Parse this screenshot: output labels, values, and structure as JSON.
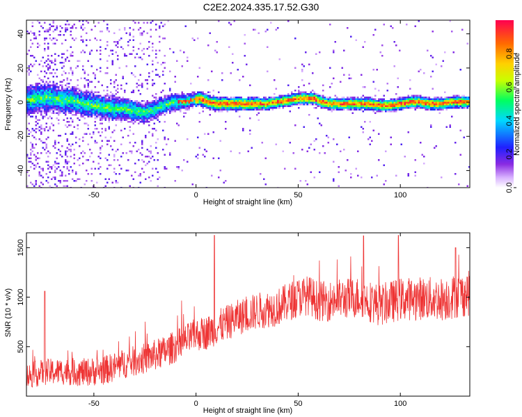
{
  "figure_title": "C2E2.2024.335.17.52.G30",
  "colorbar": {
    "label": "Normalized spectral amplitude",
    "ticks": [
      "0.0",
      "0.2",
      "0.4",
      "0.6",
      "0.8"
    ],
    "tick_values": [
      0.0,
      0.2,
      0.4,
      0.6,
      0.8
    ],
    "range": [
      0.0,
      1.0
    ],
    "colormap": "rainbow (white-violet-blue-cyan-green-yellow-orange-red)"
  },
  "chart_data": [
    {
      "type": "heatmap",
      "xlabel": "Height of straight line (km)",
      "ylabel": "Frequency (Hz)",
      "xlim": [
        -83,
        134
      ],
      "ylim": [
        -50,
        48
      ],
      "xticks": [
        "-50",
        "0",
        "50",
        "100"
      ],
      "xtick_values": [
        -50,
        0,
        50,
        100
      ],
      "yticks": [
        "40",
        "20",
        "0",
        "-20",
        "-40"
      ],
      "ytick_values": [
        40,
        20,
        0,
        -20,
        -40
      ],
      "ridge_center_hz": {
        "x": [
          -83,
          -78,
          -72,
          -66,
          -60,
          -55,
          -50,
          -45,
          -40,
          -35,
          -30,
          -26,
          -22,
          -18,
          -14,
          -10,
          -6,
          -2,
          2,
          6,
          10,
          15,
          20,
          25,
          30,
          35,
          40,
          45,
          50,
          55,
          58,
          62,
          66,
          70,
          75,
          80,
          85,
          90,
          95,
          100,
          105,
          110,
          115,
          120,
          125,
          130,
          134
        ],
        "y": [
          1,
          2,
          3,
          1,
          1,
          -1,
          -2,
          -3,
          -4,
          -4,
          -5,
          -6,
          -5,
          -3,
          -1,
          0,
          0,
          1,
          2,
          0,
          -1,
          -1,
          -1,
          -1,
          -1,
          -1,
          0,
          1,
          2,
          2,
          2,
          0,
          -1,
          -1,
          -1,
          -1,
          -1,
          -2,
          -2,
          -1,
          0,
          0,
          -1,
          -1,
          0,
          0,
          0
        ]
      },
      "ridge_halfwidth_hz": {
        "x": [
          -83,
          -40,
          -20,
          0,
          40,
          134
        ],
        "y": [
          6,
          5,
          4,
          3,
          2.5,
          2.5
        ]
      },
      "grid": false
    },
    {
      "type": "line",
      "xlabel": "Height of straight line (km)",
      "ylabel": "SNR (10 * v/v)",
      "xlim": [
        -83,
        134
      ],
      "ylim": [
        0,
        1650
      ],
      "xticks": [
        "-50",
        "0",
        "50",
        "100"
      ],
      "xtick_values": [
        -50,
        0,
        50,
        100
      ],
      "yticks": [
        "1500",
        "1000",
        "500"
      ],
      "ytick_values": [
        1500,
        1000,
        500
      ],
      "series": [
        {
          "color": "#ee3333",
          "trend": {
            "x": [
              -83,
              -75,
              -65,
              -55,
              -45,
              -35,
              -25,
              -15,
              -5,
              0,
              5,
              10,
              20,
              30,
              40,
              50,
              55,
              60,
              65,
              70,
              80,
              90,
              100,
              110,
              120,
              134
            ],
            "y": [
              200,
              240,
              250,
              240,
              260,
              330,
              380,
              450,
              560,
              620,
              640,
              690,
              790,
              860,
              900,
              1000,
              1020,
              960,
              960,
              980,
              1000,
              920,
              980,
              990,
              980,
              1040
            ]
          },
          "noise_spread": {
            "x": [
              -83,
              -40,
              0,
              50,
              134
            ],
            "y": [
              130,
              150,
              170,
              200,
              230
            ]
          },
          "spikes": [
            {
              "x": -74,
              "y": 1060
            },
            {
              "x": 9,
              "y": 1625
            },
            {
              "x": 82,
              "y": 1620
            },
            {
              "x": 99,
              "y": 1625
            },
            {
              "x": 127,
              "y": 1500
            }
          ]
        }
      ],
      "grid": false
    }
  ]
}
